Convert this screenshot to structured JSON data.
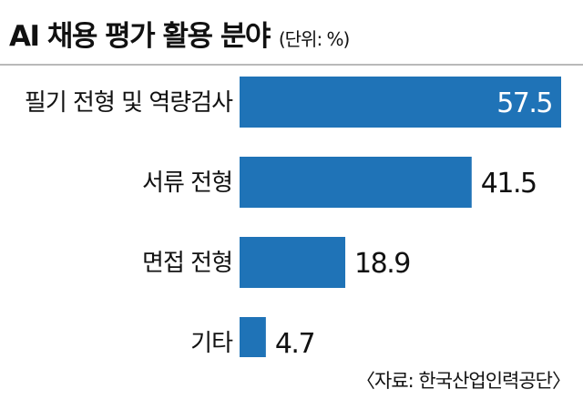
{
  "header": {
    "title": "AI 채용 평가 활용 분야",
    "unit": "(단위: %)"
  },
  "source": "〈자료: 한국산업인력공단〉",
  "colors": {
    "bar": "#1f73b7",
    "label_inside": "#ffffff",
    "text": "#111111",
    "divider": "#b9b9b9"
  },
  "chart_data": {
    "type": "bar",
    "orientation": "horizontal",
    "title": "AI 채용 평가 활용 분야",
    "unit": "%",
    "categories": [
      "필기 전형 및 역량검사",
      "서류 전형",
      "면접 전형",
      "기타"
    ],
    "values": [
      57.5,
      41.5,
      18.9,
      4.7
    ],
    "value_labels": [
      "57.5",
      "41.5",
      "18.9",
      "4.7"
    ],
    "xlim": [
      0,
      57.5
    ],
    "grid": false,
    "legend": "none"
  }
}
